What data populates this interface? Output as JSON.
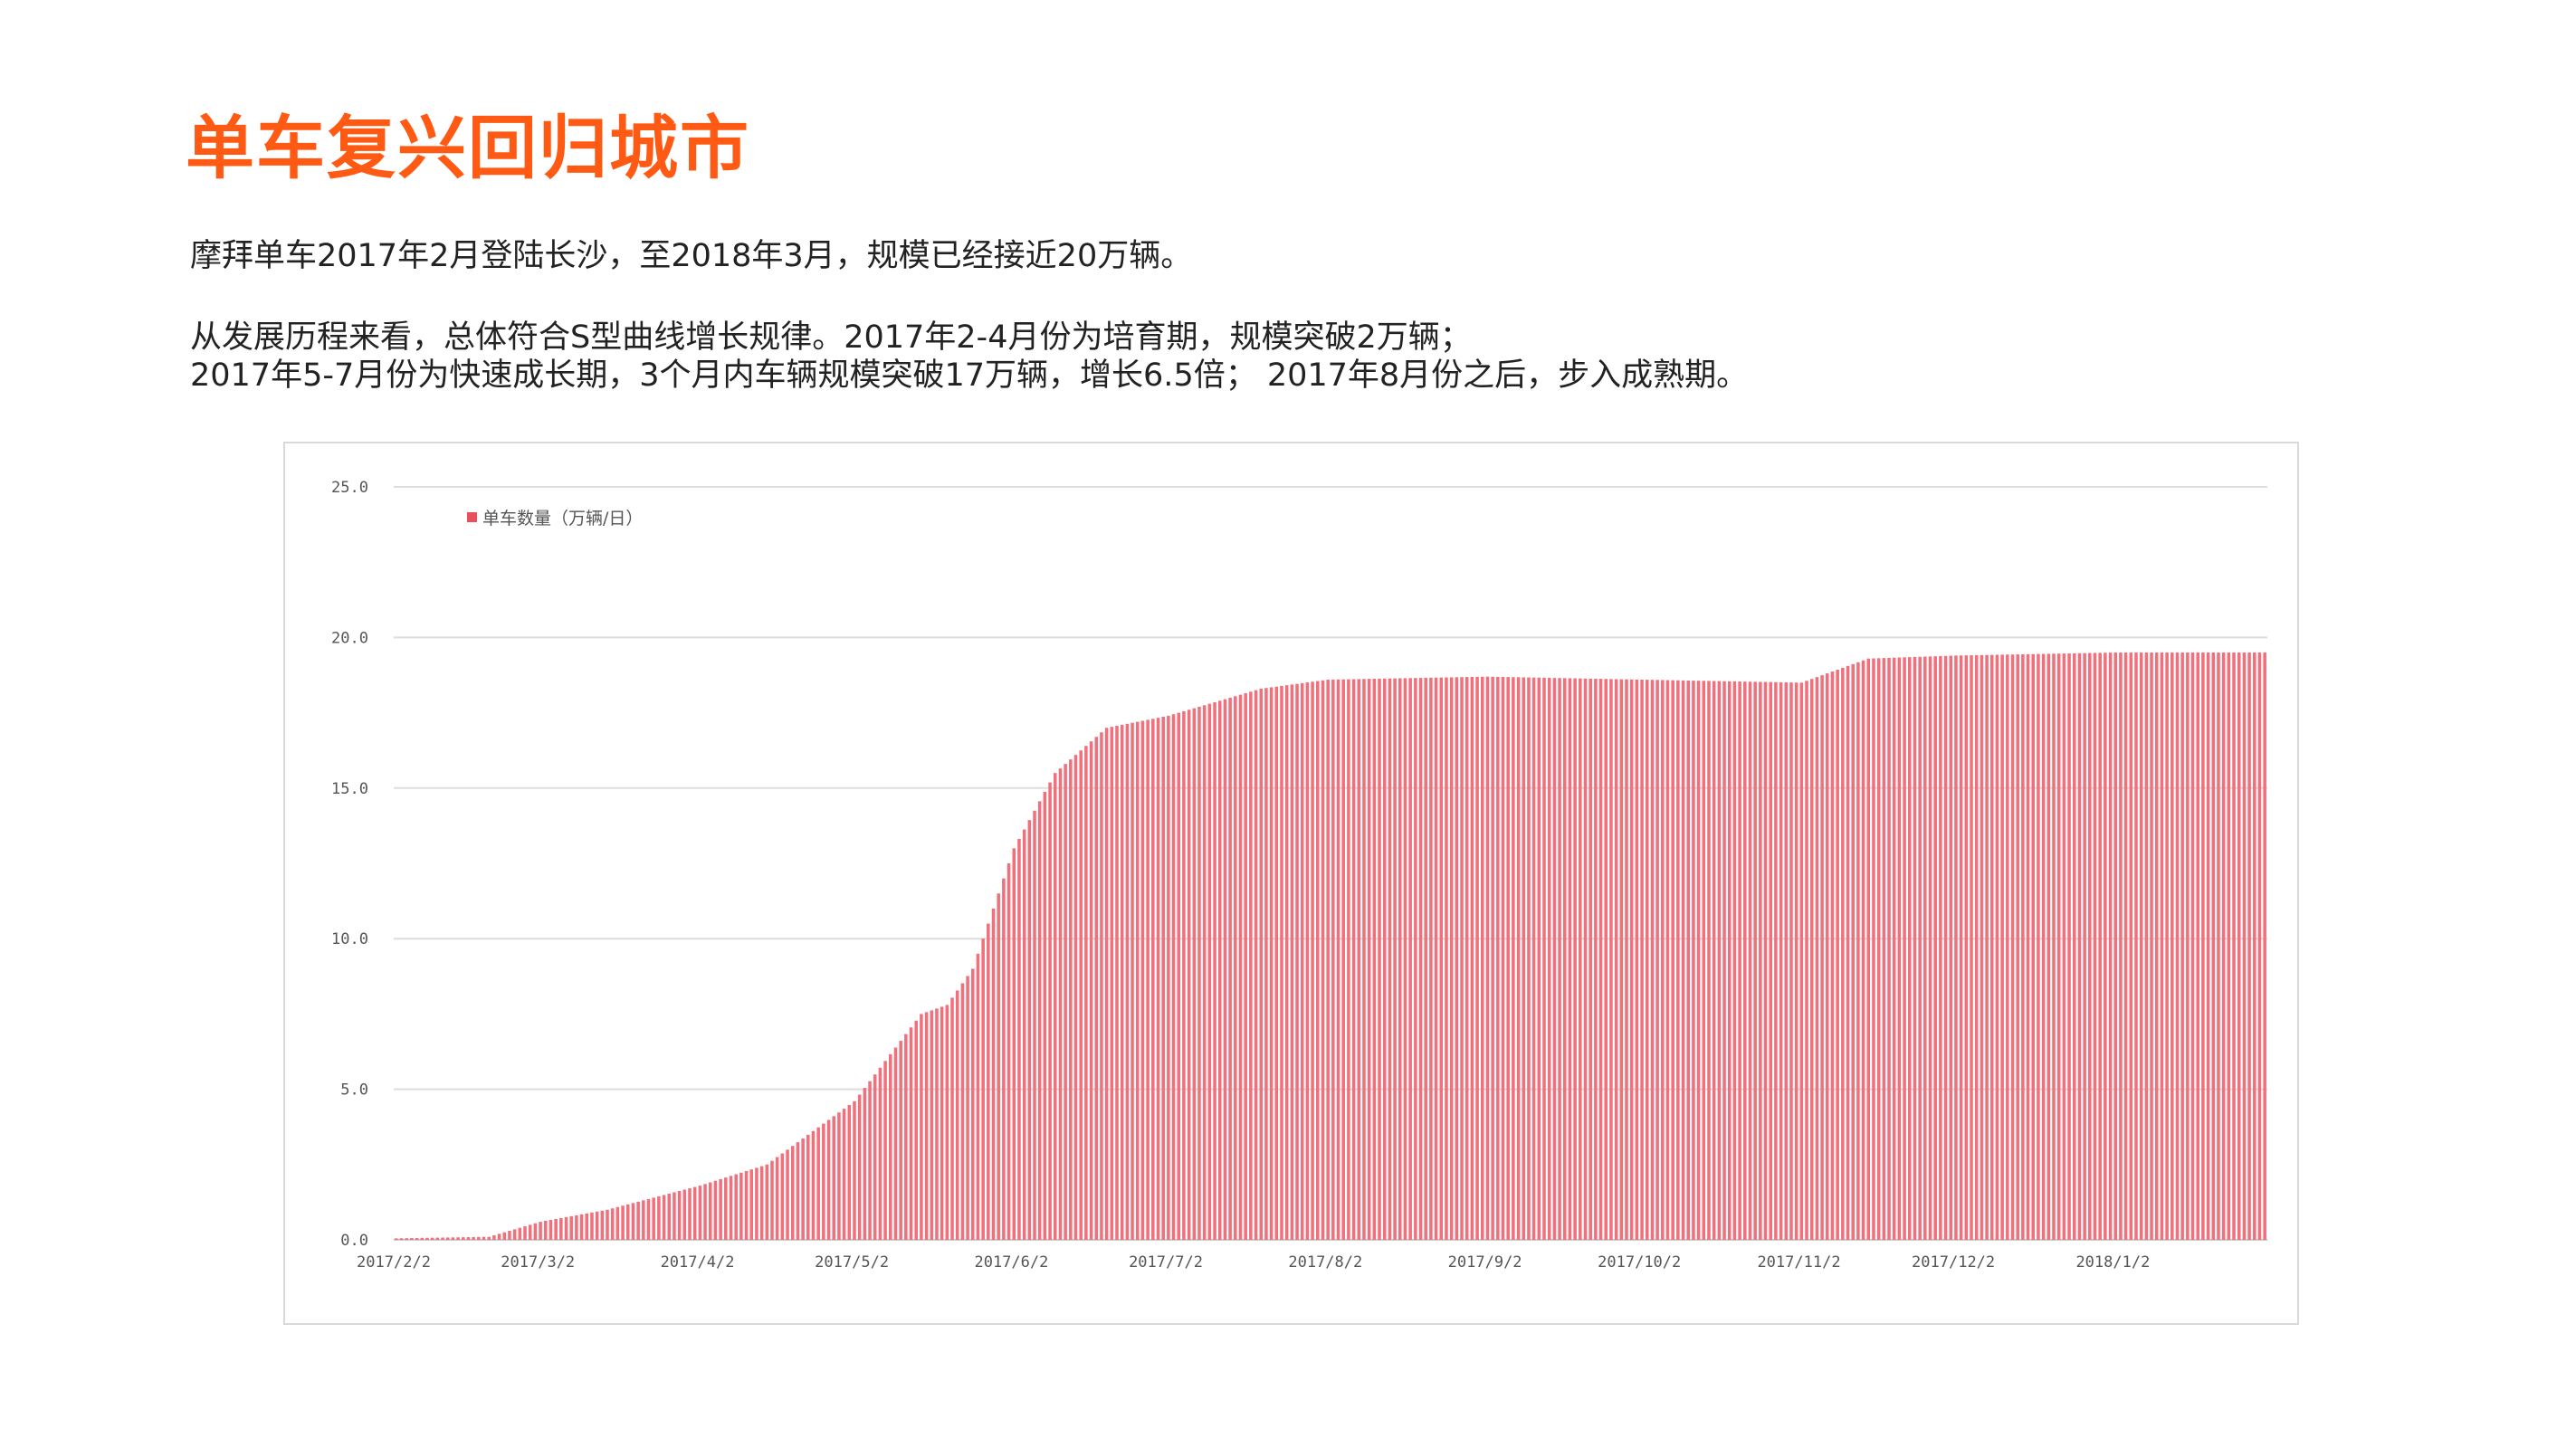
{
  "page": {
    "title": "单车复兴回归城市",
    "paragraphs": [
      "摩拜单车2017年2月登陆长沙，至2018年3月，规模已经接近20万辆。",
      "从发展历程来看，总体符合S型曲线增长规律。2017年2-4月份为培育期，规模突破2万辆；",
      "2017年5-7月份为快速成长期，3个月内车辆规模突破17万辆，增长6.5倍； 2017年8月份之后，步入成熟期。"
    ]
  },
  "colors": {
    "title": "#ff5a14",
    "bars": "#f0707c",
    "grid": "#dddddd",
    "text": "#222222"
  },
  "chart_data": {
    "type": "bar",
    "title": "",
    "xlabel": "",
    "ylabel": "",
    "legend": {
      "entries": [
        "单车数量（万辆/日）"
      ],
      "position": "top-left"
    },
    "grid": true,
    "ylim": [
      0,
      25
    ],
    "yticks": [
      "0.0",
      "5.0",
      "10.0",
      "15.0",
      "20.0",
      "25.0"
    ],
    "xtick_labels": [
      "2017/2/2",
      "2017/3/2",
      "2017/4/2",
      "2017/5/2",
      "2017/6/2",
      "2017/7/2",
      "2017/8/2",
      "2017/9/2",
      "2017/10/2",
      "2017/11/2",
      "2017/12/2",
      "2018/1/2"
    ],
    "x_range": [
      "2017-02-02",
      "2018-01-31"
    ],
    "series": [
      {
        "name": "单车数量（万辆/日）",
        "x_daily_interpolated_between": "keypoints",
        "keypoints": [
          [
            "2017-02-02",
            0.05
          ],
          [
            "2017-02-20",
            0.1
          ],
          [
            "2017-03-02",
            0.6
          ],
          [
            "2017-03-15",
            1.0
          ],
          [
            "2017-04-02",
            1.8
          ],
          [
            "2017-04-15",
            2.5
          ],
          [
            "2017-05-02",
            4.6
          ],
          [
            "2017-05-15",
            7.5
          ],
          [
            "2017-05-20",
            7.8
          ],
          [
            "2017-05-25",
            9.0
          ],
          [
            "2017-06-02",
            13.0
          ],
          [
            "2017-06-10",
            15.5
          ],
          [
            "2017-06-20",
            17.0
          ],
          [
            "2017-07-02",
            17.4
          ],
          [
            "2017-07-20",
            18.3
          ],
          [
            "2017-08-02",
            18.6
          ],
          [
            "2017-09-02",
            18.7
          ],
          [
            "2017-10-02",
            18.6
          ],
          [
            "2017-11-02",
            18.5
          ],
          [
            "2017-11-15",
            19.3
          ],
          [
            "2017-12-02",
            19.4
          ],
          [
            "2018-01-02",
            19.5
          ],
          [
            "2018-01-31",
            19.5
          ]
        ]
      }
    ]
  }
}
